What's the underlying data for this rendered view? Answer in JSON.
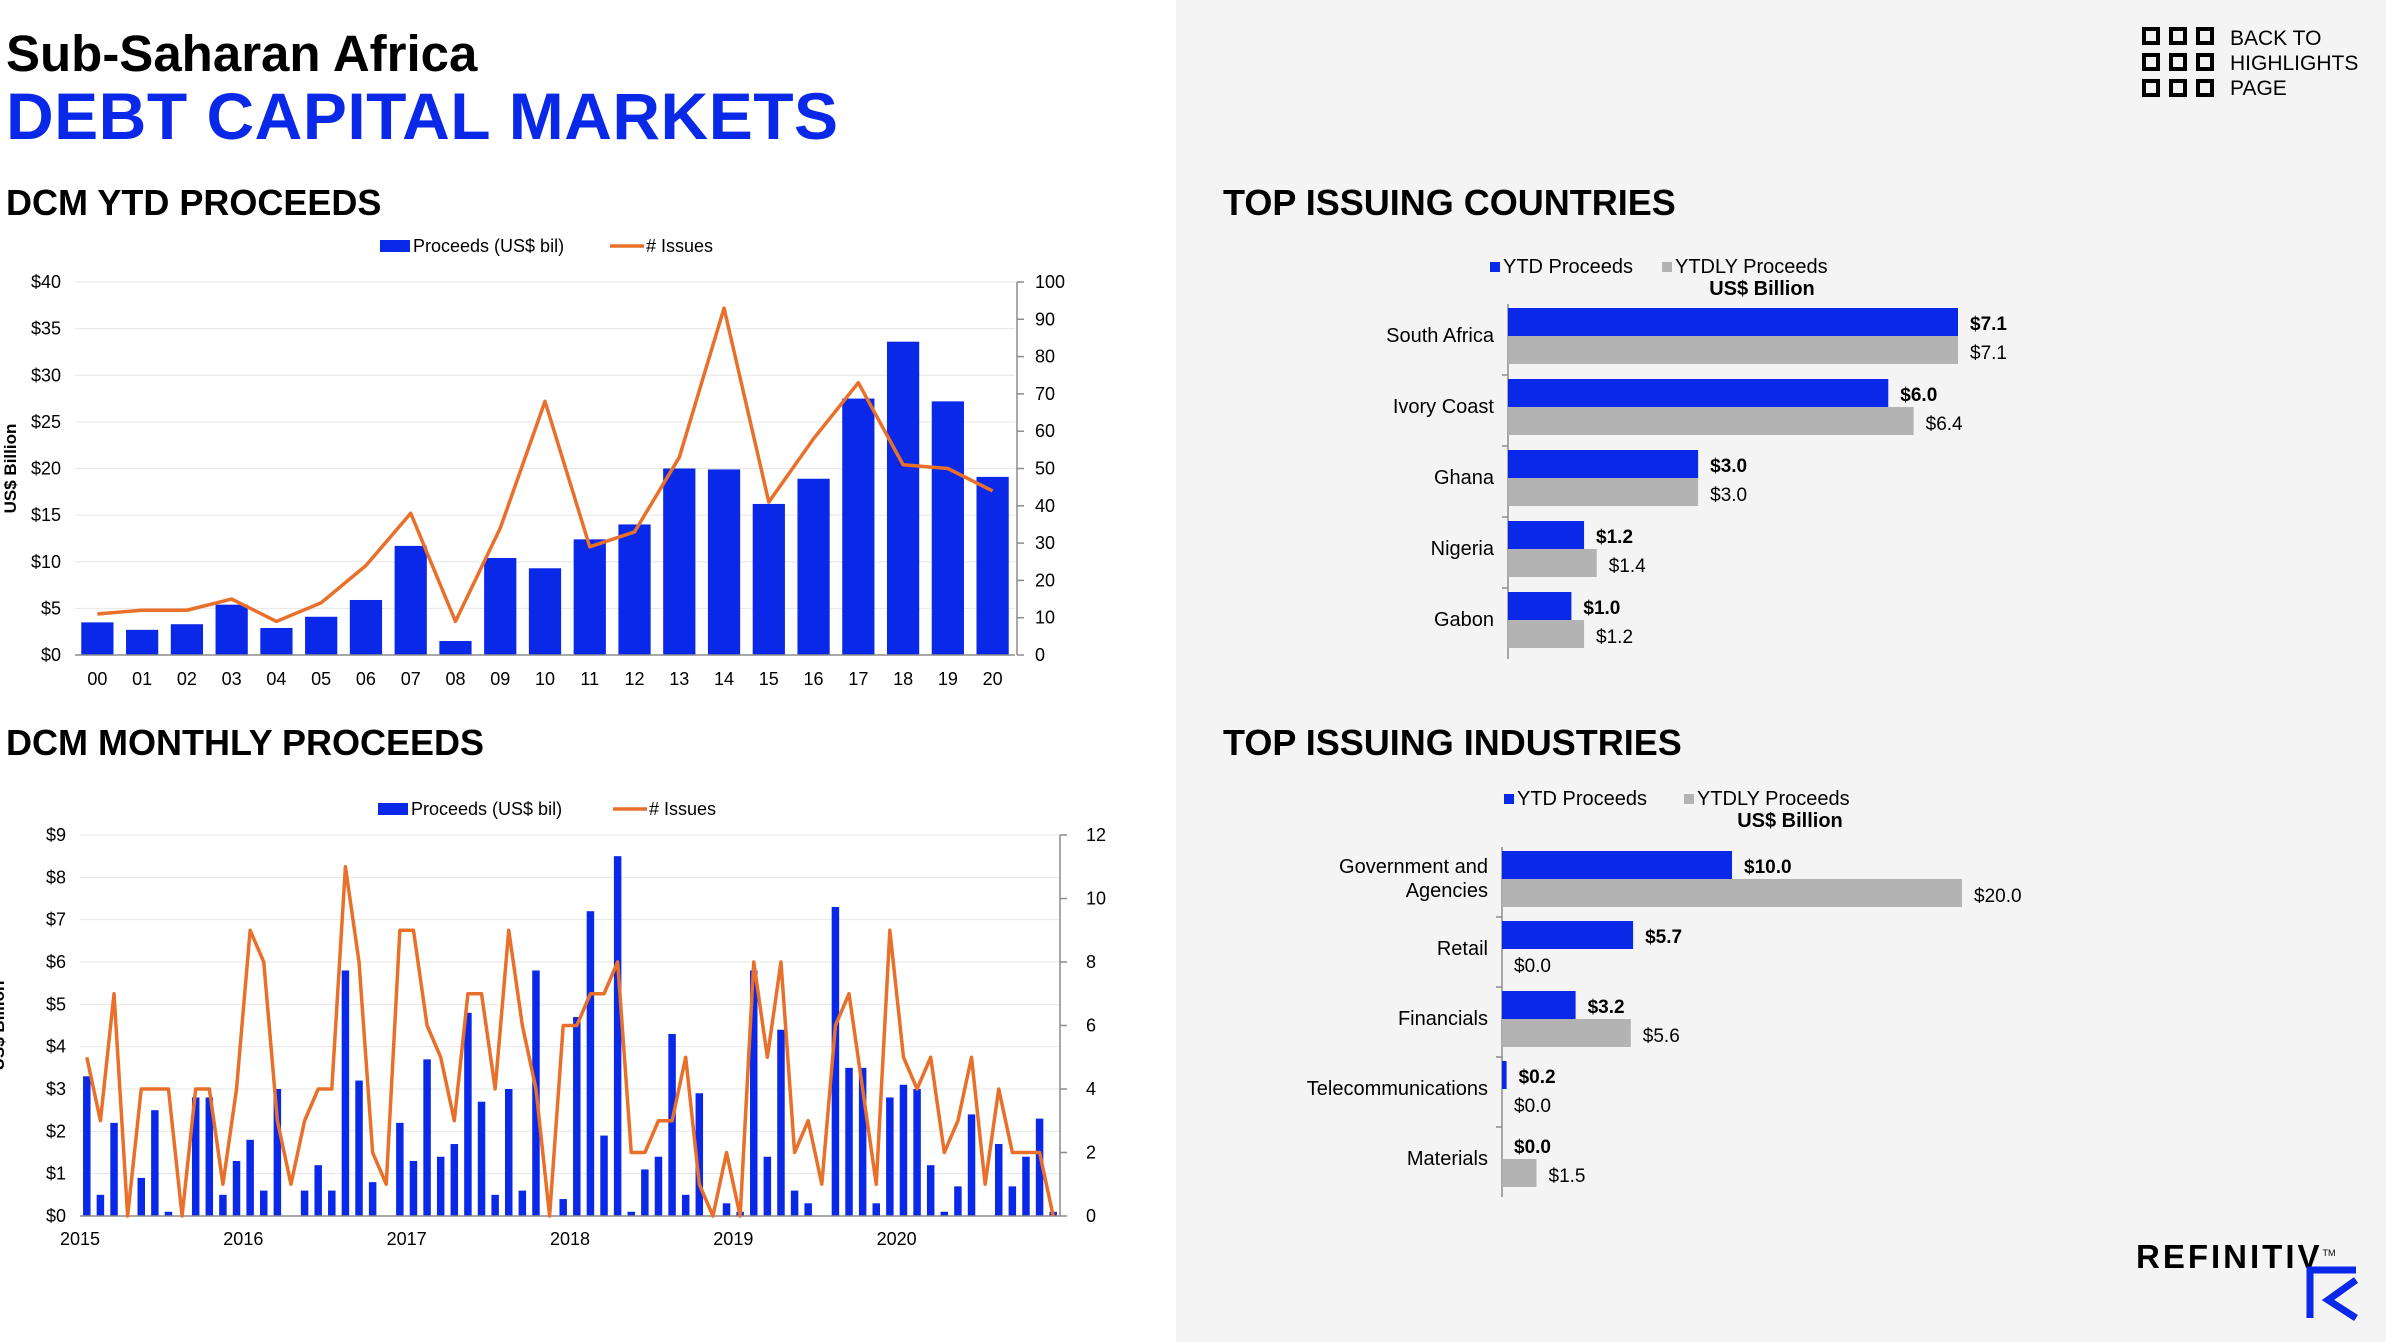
{
  "header": {
    "region": "Sub-Saharan Africa",
    "title": "DEBT CAPITAL MARKETS",
    "back_link": "BACK TO HIGHLIGHTS PAGE",
    "brand": "REFINITIV",
    "brand_mark": "TM"
  },
  "colors": {
    "bar": "#0a28e8",
    "line": "#e8702a",
    "gray": "#b3b3b3",
    "title_blue": "#0a28e8"
  },
  "icons": [
    "grid-icon",
    "refinitiv-logo-icon"
  ],
  "chart_data": [
    {
      "id": "ytd",
      "type": "bar",
      "title": "DCM YTD PROCEEDS",
      "categories": [
        "00",
        "01",
        "02",
        "03",
        "04",
        "05",
        "06",
        "07",
        "08",
        "09",
        "10",
        "11",
        "12",
        "13",
        "14",
        "15",
        "16",
        "17",
        "18",
        "19",
        "20"
      ],
      "series": [
        {
          "name": "Proceeds (US$ bil)",
          "type": "bar",
          "axis": "left",
          "values": [
            3.5,
            2.7,
            3.3,
            5.4,
            2.9,
            4.1,
            5.9,
            11.7,
            1.5,
            10.4,
            9.3,
            12.4,
            14.0,
            20.0,
            19.9,
            16.2,
            18.9,
            27.5,
            33.6,
            27.2,
            19.1
          ]
        },
        {
          "name": "# Issues",
          "type": "line",
          "axis": "right",
          "values": [
            11,
            12,
            12,
            15,
            9,
            14,
            24,
            38,
            9,
            34,
            68,
            29,
            33,
            53,
            93,
            41,
            58,
            73,
            51,
            50,
            44
          ]
        }
      ],
      "ylabel": "US$ Billion",
      "ylim": [
        0,
        40
      ],
      "y_ticks": [
        "$0",
        "$5",
        "$10",
        "$15",
        "$20",
        "$25",
        "$30",
        "$35",
        "$40"
      ],
      "y2lim": [
        0,
        100
      ],
      "y2_ticks": [
        "0",
        "10",
        "20",
        "30",
        "40",
        "50",
        "60",
        "70",
        "80",
        "90",
        "100"
      ],
      "legend": "top-center"
    },
    {
      "id": "monthly",
      "type": "bar",
      "title": "DCM MONTHLY PROCEEDS",
      "x_labels": [
        "2015",
        "2016",
        "2017",
        "2018",
        "2019",
        "2020"
      ],
      "months_per_year": 12,
      "series": [
        {
          "name": "Proceeds (US$ bil)",
          "type": "bar",
          "axis": "left",
          "values": [
            3.3,
            0.5,
            2.2,
            0,
            0.9,
            2.5,
            0.1,
            0,
            2.8,
            2.8,
            0.5,
            1.3,
            1.8,
            0.6,
            3.0,
            0,
            0.6,
            1.2,
            0.6,
            5.8,
            3.2,
            0.8,
            0,
            2.2,
            1.3,
            3.7,
            1.4,
            1.7,
            4.8,
            2.7,
            0.5,
            3.0,
            0.6,
            5.8,
            0,
            0.4,
            4.7,
            7.2,
            1.9,
            8.5,
            0.1,
            1.1,
            1.4,
            4.3,
            0.5,
            2.9,
            0,
            0.3,
            0.1,
            5.8,
            1.4,
            4.4,
            0.6,
            0.3,
            0,
            7.3,
            3.5,
            3.5,
            0.3,
            2.8,
            3.1,
            3.0,
            1.2,
            0.1,
            0.7,
            2.4,
            0,
            1.7,
            0.7,
            1.4,
            2.3,
            0.1
          ]
        },
        {
          "name": "# Issues",
          "type": "line",
          "axis": "right",
          "values": [
            5,
            3,
            7,
            0,
            4,
            4,
            4,
            0,
            4,
            4,
            1,
            4,
            9,
            8,
            3,
            1,
            3,
            4,
            4,
            11,
            8,
            2,
            1,
            9,
            9,
            6,
            5,
            3,
            7,
            7,
            4,
            9,
            6,
            4,
            0,
            6,
            6,
            7,
            7,
            8,
            2,
            2,
            3,
            3,
            5,
            1,
            0,
            2,
            0,
            8,
            5,
            8,
            2,
            3,
            1,
            6,
            7,
            4,
            1,
            9,
            5,
            4,
            5,
            2,
            3,
            5,
            1,
            4,
            2,
            2,
            2,
            0
          ]
        }
      ],
      "ylabel": "US$ Billion",
      "ylim": [
        0,
        9
      ],
      "y_ticks": [
        "$0",
        "$1",
        "$2",
        "$3",
        "$4",
        "$5",
        "$6",
        "$7",
        "$8",
        "$9"
      ],
      "y2lim": [
        0,
        12
      ],
      "y2_ticks": [
        "0",
        "2",
        "4",
        "6",
        "8",
        "10",
        "12"
      ],
      "legend": "top-center"
    },
    {
      "id": "countries",
      "type": "bar",
      "orientation": "horizontal",
      "title": "TOP ISSUING COUNTRIES",
      "subtitle": "US$ Billion",
      "categories": [
        "South Africa",
        "Ivory Coast",
        "Ghana",
        "Nigeria",
        "Gabon"
      ],
      "series": [
        {
          "name": "YTD Proceeds",
          "values": [
            7.1,
            6.0,
            3.0,
            1.2,
            1.0
          ],
          "labels": [
            "$7.1",
            "$6.0",
            "$3.0",
            "$1.2",
            "$1.0"
          ]
        },
        {
          "name": "YTDLY Proceeds",
          "values": [
            7.1,
            6.4,
            3.0,
            1.4,
            1.2
          ],
          "labels": [
            "$7.1",
            "$6.4",
            "$3.0",
            "$1.4",
            "$1.2"
          ]
        }
      ],
      "legend": "top"
    },
    {
      "id": "industries",
      "type": "bar",
      "orientation": "horizontal",
      "title": "TOP ISSUING INDUSTRIES",
      "subtitle": "US$ Billion",
      "categories": [
        [
          "Government and",
          "Agencies"
        ],
        [
          "Retail"
        ],
        [
          "Financials"
        ],
        [
          "Telecommunications"
        ],
        [
          "Materials"
        ]
      ],
      "series": [
        {
          "name": "YTD Proceeds",
          "values": [
            10.0,
            5.7,
            3.2,
            0.2,
            0.0
          ],
          "labels": [
            "$10.0",
            "$5.7",
            "$3.2",
            "$0.2",
            "$0.0"
          ]
        },
        {
          "name": "YTDLY Proceeds",
          "values": [
            20.0,
            0.0,
            5.6,
            0.0,
            1.5
          ],
          "labels": [
            "$20.0",
            "$0.0",
            "$5.6",
            "$0.0",
            "$1.5"
          ]
        }
      ],
      "legend": "top"
    }
  ]
}
